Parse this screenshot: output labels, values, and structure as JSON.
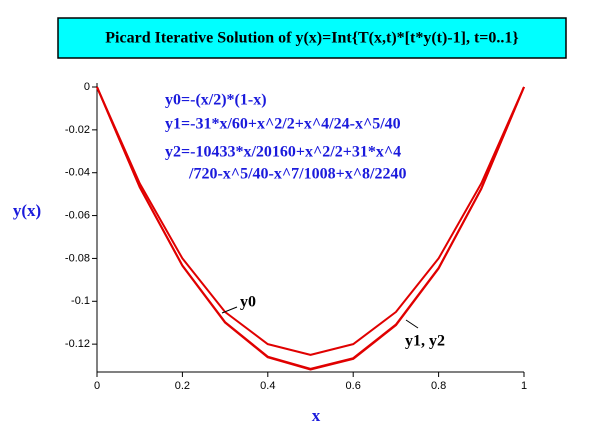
{
  "chart_data": {
    "type": "line",
    "title": "Picard Iterative Solution of y(x)=Int{T(x,t)*[t*y(t)-1], t=0..1}",
    "x_label": "x",
    "y_label": "y(x)",
    "annotations": [
      "y0=-(x/2)*(1-x)",
      "y1=-31*x/60+x^2/2+x^4/24-x^5/40",
      "y2=-10433*x/20160+x^2/2+31*x^4",
      "/720-x^5/40-x^7/1008+x^8/2240",
      "y0",
      "y1, y2"
    ],
    "x": [
      0,
      0.1,
      0.2,
      0.3,
      0.4,
      0.5,
      0.6,
      0.7,
      0.8,
      0.9,
      1
    ],
    "series": [
      {
        "color": "#e00000",
        "values": [
          0,
          -0.045,
          -0.08,
          -0.105,
          -0.12,
          -0.125,
          -0.12,
          -0.105,
          -0.08,
          -0.045,
          0
        ]
      },
      {
        "color": "#e00000",
        "values": [
          0,
          -0.046663,
          -0.083275,
          -0.109723,
          -0.125856,
          -0.13151,
          -0.126544,
          -0.110865,
          -0.084459,
          -0.047425,
          0
        ]
      },
      {
        "color": "#e00000",
        "values": [
          0,
          -0.046747,
          -0.083441,
          -0.109965,
          -0.126159,
          -0.131851,
          -0.12689,
          -0.111178,
          -0.084697,
          -0.047554,
          0
        ]
      }
    ],
    "xlim": [
      0,
      1
    ],
    "ylim": [
      -0.133,
      0
    ],
    "xticks": [
      0,
      0.2,
      0.4,
      0.6,
      0.8,
      1
    ],
    "yticks": [
      0,
      -0.02,
      -0.04,
      -0.06,
      -0.08,
      -0.1,
      -0.12
    ]
  }
}
